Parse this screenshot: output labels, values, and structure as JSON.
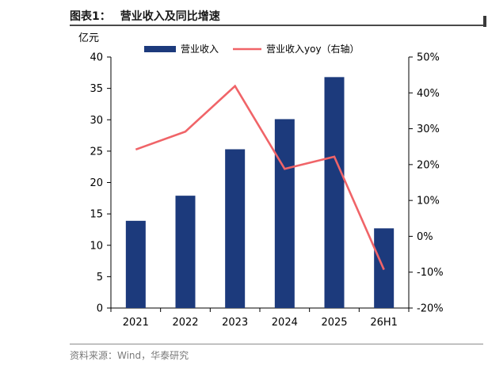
{
  "figure": {
    "label": "图表1：",
    "title": "营业收入及同比增速",
    "source": "资料来源：Wind，华泰研究"
  },
  "colors": {
    "bar": "#1c3a7c",
    "line": "#f06468",
    "axis": "#000000"
  },
  "chart_data": {
    "type": "bar",
    "categories": [
      "2021",
      "2022",
      "2023",
      "2024",
      "2025",
      "26H1"
    ],
    "y_left": {
      "unit": "亿元",
      "ylim": [
        0,
        40
      ],
      "ticks": [
        "0",
        "5",
        "10",
        "15",
        "20",
        "25",
        "30",
        "35",
        "40"
      ]
    },
    "y_right": {
      "ylim": [
        -20,
        50
      ],
      "ticks": [
        "-20%",
        "-10%",
        "0%",
        "10%",
        "20%",
        "30%",
        "40%",
        "50%"
      ]
    },
    "grid": false,
    "legend_position": "top",
    "series": [
      {
        "name": "营业收入",
        "type": "bar",
        "axis": "left",
        "values": [
          13.9,
          17.9,
          25.3,
          30.1,
          36.8,
          12.7
        ]
      },
      {
        "name": "营业收入yoy（右轴）",
        "type": "line",
        "axis": "right",
        "values": [
          24.2,
          29.2,
          41.9,
          18.8,
          22.2,
          -9.3
        ]
      }
    ]
  }
}
